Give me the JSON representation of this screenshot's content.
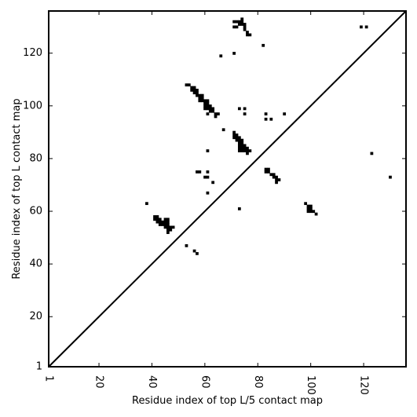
{
  "chart_data": {
    "type": "scatter",
    "title": "",
    "xlabel": "Residue index of top L/5 contact map",
    "ylabel": "Residue index of top L contact map",
    "xlim": [
      1,
      136
    ],
    "ylim": [
      1,
      136
    ],
    "xticks": [
      1,
      20,
      40,
      60,
      80,
      100,
      120
    ],
    "yticks": [
      1,
      20,
      40,
      60,
      80,
      100,
      120
    ],
    "xtick_labels": [
      "1",
      "20",
      "40",
      "60",
      "80",
      "100",
      "120"
    ],
    "ytick_labels": [
      "1",
      "20",
      "40",
      "60",
      "80",
      "100",
      "120"
    ],
    "diagonal": [
      [
        1,
        1
      ],
      [
        136,
        136
      ]
    ],
    "grid": false,
    "marker": "square",
    "color": "#000000",
    "series": [
      {
        "points": [
          [
            71,
            130
          ],
          [
            72,
            130
          ],
          [
            73,
            131
          ],
          [
            73,
            132
          ],
          [
            72,
            132
          ],
          [
            71,
            132
          ],
          [
            74,
            133
          ],
          [
            74,
            132
          ],
          [
            74,
            131
          ],
          [
            75,
            131
          ],
          [
            75,
            130
          ],
          [
            75,
            129
          ],
          [
            76,
            128
          ],
          [
            76,
            127
          ],
          [
            77,
            127
          ],
          [
            82,
            123
          ],
          [
            66,
            119
          ],
          [
            71,
            120
          ],
          [
            119,
            130
          ],
          [
            121,
            130
          ],
          [
            53,
            108
          ],
          [
            54,
            108
          ],
          [
            55,
            107
          ],
          [
            56,
            107
          ],
          [
            56,
            106
          ],
          [
            55,
            106
          ],
          [
            57,
            106
          ],
          [
            57,
            105
          ],
          [
            56,
            105
          ],
          [
            57,
            104
          ],
          [
            58,
            104
          ],
          [
            59,
            104
          ],
          [
            58,
            103
          ],
          [
            59,
            103
          ],
          [
            58,
            102
          ],
          [
            59,
            102
          ],
          [
            60,
            102
          ],
          [
            61,
            102
          ],
          [
            60,
            101
          ],
          [
            61,
            101
          ],
          [
            60,
            100
          ],
          [
            61,
            100
          ],
          [
            62,
            100
          ],
          [
            60,
            99
          ],
          [
            61,
            99
          ],
          [
            62,
            99
          ],
          [
            63,
            99
          ],
          [
            62,
            98
          ],
          [
            63,
            98
          ],
          [
            61,
            97
          ],
          [
            64,
            97
          ],
          [
            65,
            97
          ],
          [
            64,
            96
          ],
          [
            73,
            99
          ],
          [
            75,
            99
          ],
          [
            75,
            97
          ],
          [
            83,
            97
          ],
          [
            90,
            97
          ],
          [
            83,
            95
          ],
          [
            85,
            95
          ],
          [
            67,
            91
          ],
          [
            71,
            90
          ],
          [
            71,
            89
          ],
          [
            72,
            89
          ],
          [
            71,
            88
          ],
          [
            72,
            88
          ],
          [
            73,
            88
          ],
          [
            72,
            87
          ],
          [
            73,
            87
          ],
          [
            74,
            87
          ],
          [
            73,
            86
          ],
          [
            74,
            86
          ],
          [
            73,
            85
          ],
          [
            74,
            85
          ],
          [
            75,
            85
          ],
          [
            73,
            84
          ],
          [
            74,
            84
          ],
          [
            75,
            84
          ],
          [
            76,
            84
          ],
          [
            73,
            83
          ],
          [
            74,
            83
          ],
          [
            75,
            83
          ],
          [
            76,
            83
          ],
          [
            77,
            83
          ],
          [
            76,
            82
          ],
          [
            61,
            83
          ],
          [
            123,
            82
          ],
          [
            57,
            75
          ],
          [
            58,
            75
          ],
          [
            61,
            75
          ],
          [
            83,
            76
          ],
          [
            84,
            76
          ],
          [
            83,
            75
          ],
          [
            84,
            75
          ],
          [
            85,
            74
          ],
          [
            86,
            74
          ],
          [
            86,
            73
          ],
          [
            87,
            73
          ],
          [
            87,
            72
          ],
          [
            88,
            72
          ],
          [
            87,
            71
          ],
          [
            60,
            73
          ],
          [
            61,
            73
          ],
          [
            130,
            73
          ],
          [
            63,
            71
          ],
          [
            61,
            67
          ],
          [
            98,
            63
          ],
          [
            99,
            62
          ],
          [
            100,
            62
          ],
          [
            99,
            61
          ],
          [
            100,
            61
          ],
          [
            99,
            60
          ],
          [
            100,
            60
          ],
          [
            101,
            60
          ],
          [
            102,
            59
          ],
          [
            73,
            61
          ],
          [
            38,
            63
          ],
          [
            41,
            58
          ],
          [
            42,
            58
          ],
          [
            41,
            57
          ],
          [
            42,
            57
          ],
          [
            43,
            57
          ],
          [
            45,
            57
          ],
          [
            46,
            57
          ],
          [
            42,
            56
          ],
          [
            43,
            56
          ],
          [
            44,
            56
          ],
          [
            45,
            56
          ],
          [
            46,
            56
          ],
          [
            43,
            55
          ],
          [
            44,
            55
          ],
          [
            45,
            55
          ],
          [
            46,
            55
          ],
          [
            45,
            54
          ],
          [
            46,
            54
          ],
          [
            47,
            54
          ],
          [
            48,
            54
          ],
          [
            46,
            53
          ],
          [
            47,
            53
          ],
          [
            46,
            52
          ],
          [
            53,
            47
          ],
          [
            56,
            45
          ],
          [
            57,
            44
          ]
        ]
      }
    ]
  }
}
